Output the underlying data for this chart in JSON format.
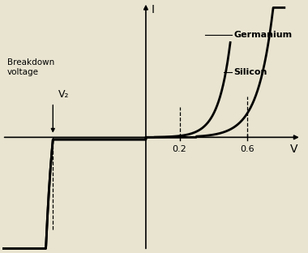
{
  "title": "",
  "xlabel": "V",
  "ylabel": "I",
  "germanium_threshold": 0.2,
  "silicon_threshold": 0.6,
  "breakdown_voltage": -0.55,
  "x_tick_labels": [
    "0.2",
    "0.6"
  ],
  "x_tick_positions": [
    0.2,
    0.6
  ],
  "breakdown_label": "Breakdown\nvoltage",
  "v2_label": "V₂",
  "germanium_label": "Germanium",
  "silicon_label": "Silicon",
  "line_color": "#000000",
  "bg_color": "#e8e4d0",
  "xlim": [
    -0.85,
    0.92
  ],
  "ylim": [
    -1.05,
    1.25
  ]
}
